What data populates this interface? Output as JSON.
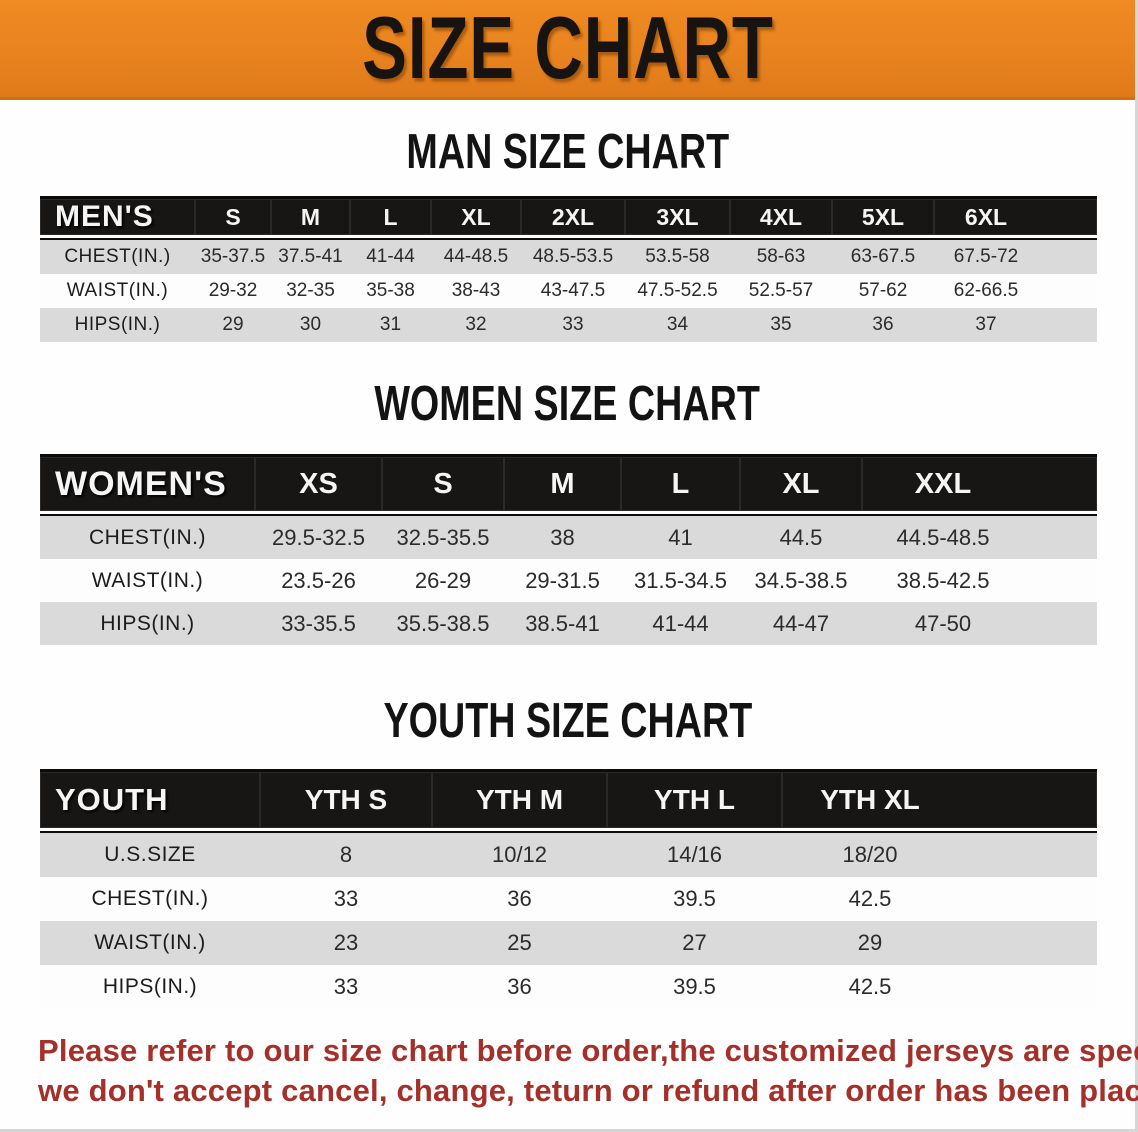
{
  "banner": {
    "title": "SIZE CHART",
    "bg_color": "#E8831F",
    "text_color": "#161311"
  },
  "sections": [
    {
      "heading": "MAN SIZE CHART",
      "table": {
        "header_label": "MEN'S",
        "columns": [
          "S",
          "M",
          "L",
          "XL",
          "2XL",
          "3XL",
          "4XL",
          "5XL",
          "6XL"
        ],
        "rows": [
          {
            "label": "CHEST(IN.)",
            "values": [
              "35-37.5",
              "37.5-41",
              "41-44",
              "44-48.5",
              "48.5-53.5",
              "53.5-58",
              "58-63",
              "63-67.5",
              "67.5-72"
            ]
          },
          {
            "label": "WAIST(IN.)",
            "values": [
              "29-32",
              "32-35",
              "35-38",
              "38-43",
              "43-47.5",
              "47.5-52.5",
              "52.5-57",
              "57-62",
              "62-66.5"
            ]
          },
          {
            "label": "HIPS(IN.)",
            "values": [
              "29",
              "30",
              "31",
              "32",
              "33",
              "34",
              "35",
              "36",
              "37"
            ]
          }
        ]
      }
    },
    {
      "heading": "WOMEN SIZE CHART",
      "table": {
        "header_label": "WOMEN'S",
        "columns": [
          "XS",
          "S",
          "M",
          "L",
          "XL",
          "XXL"
        ],
        "rows": [
          {
            "label": "CHEST(IN.)",
            "values": [
              "29.5-32.5",
              "32.5-35.5",
              "38",
              "41",
              "44.5",
              "44.5-48.5"
            ]
          },
          {
            "label": "WAIST(IN.)",
            "values": [
              "23.5-26",
              "26-29",
              "29-31.5",
              "31.5-34.5",
              "34.5-38.5",
              "38.5-42.5"
            ]
          },
          {
            "label": "HIPS(IN.)",
            "values": [
              "33-35.5",
              "35.5-38.5",
              "38.5-41",
              "41-44",
              "44-47",
              "47-50"
            ]
          }
        ]
      }
    },
    {
      "heading": "YOUTH SIZE CHART",
      "table": {
        "header_label": "YOUTH",
        "columns": [
          "YTH S",
          "YTH M",
          "YTH L",
          "YTH XL"
        ],
        "rows": [
          {
            "label": "U.S.SIZE",
            "values": [
              "8",
              "10/12",
              "14/16",
              "18/20"
            ]
          },
          {
            "label": "CHEST(IN.)",
            "values": [
              "33",
              "36",
              "39.5",
              "42.5"
            ]
          },
          {
            "label": "WAIST(IN.)",
            "values": [
              "23",
              "25",
              "27",
              "29"
            ]
          },
          {
            "label": "HIPS(IN.)",
            "values": [
              "33",
              "36",
              "39.5",
              "42.5"
            ]
          }
        ]
      }
    }
  ],
  "footer": {
    "line1": "Please refer to our size chart before order,the customized jerseys are special products,",
    "line2": "we don't accept cancel, change, teturn or refund after order has been placed!",
    "text_color": "#A5302A"
  }
}
